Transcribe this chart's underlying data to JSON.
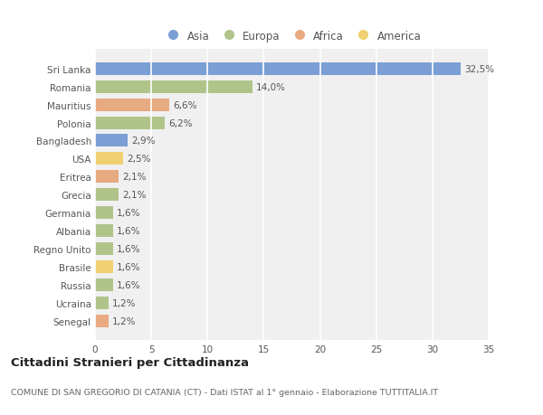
{
  "countries": [
    "Sri Lanka",
    "Romania",
    "Mauritius",
    "Polonia",
    "Bangladesh",
    "USA",
    "Eritrea",
    "Grecia",
    "Germania",
    "Albania",
    "Regno Unito",
    "Brasile",
    "Russia",
    "Ucraina",
    "Senegal"
  ],
  "values": [
    32.5,
    14.0,
    6.6,
    6.2,
    2.9,
    2.5,
    2.1,
    2.1,
    1.6,
    1.6,
    1.6,
    1.6,
    1.6,
    1.2,
    1.2
  ],
  "labels": [
    "32,5%",
    "14,0%",
    "6,6%",
    "6,2%",
    "2,9%",
    "2,5%",
    "2,1%",
    "2,1%",
    "1,6%",
    "1,6%",
    "1,6%",
    "1,6%",
    "1,6%",
    "1,2%",
    "1,2%"
  ],
  "continents": [
    "Asia",
    "Europa",
    "Africa",
    "Europa",
    "Asia",
    "America",
    "Africa",
    "Europa",
    "Europa",
    "Europa",
    "Europa",
    "America",
    "Europa",
    "Europa",
    "Africa"
  ],
  "continent_colors": {
    "Asia": "#7b9fd4",
    "Europa": "#b0c48a",
    "Africa": "#e8aa80",
    "America": "#f0d070"
  },
  "legend_items": [
    "Asia",
    "Europa",
    "Africa",
    "America"
  ],
  "legend_colors": [
    "#7b9fd4",
    "#b0c48a",
    "#e8aa80",
    "#f0d070"
  ],
  "xlim": [
    0,
    35
  ],
  "xticks": [
    0,
    5,
    10,
    15,
    20,
    25,
    30,
    35
  ],
  "title": "Cittadini Stranieri per Cittadinanza",
  "subtitle": "COMUNE DI SAN GREGORIO DI CATANIA (CT) - Dati ISTAT al 1° gennaio - Elaborazione TUTTITALIA.IT",
  "background_color": "#ffffff",
  "plot_bg_color": "#f0f0f0",
  "bar_height": 0.7,
  "grid_color": "#ffffff",
  "label_fontsize": 7.5,
  "tick_fontsize": 7.5,
  "label_color": "#555555"
}
